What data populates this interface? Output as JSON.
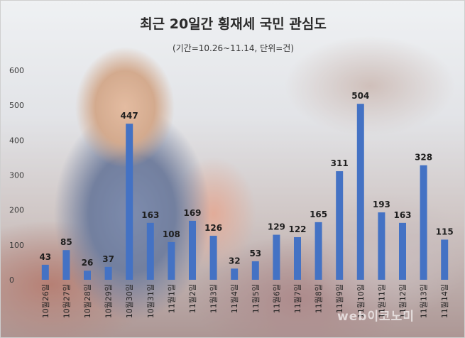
{
  "watermark": "web이코노미",
  "chart_data": {
    "type": "bar",
    "title": "최근 20일간 횡재세 국민 관심도",
    "subtitle": "(기간=10.26~11.14, 단위=건)",
    "categories": [
      "10월26일",
      "10월27일",
      "10월28일",
      "10월29일",
      "10월30일",
      "10월31일",
      "11월1일",
      "11월2일",
      "11월3일",
      "11월4일",
      "11월5일",
      "11월6일",
      "11월7일",
      "11월8일",
      "11월9일",
      "11월10일",
      "11월11일",
      "11월12일",
      "11월13일",
      "11월14일"
    ],
    "values": [
      43,
      85,
      26,
      37,
      447,
      163,
      108,
      169,
      126,
      32,
      53,
      129,
      122,
      165,
      311,
      504,
      193,
      163,
      328,
      115
    ],
    "yticks": [
      0,
      100,
      200,
      300,
      400,
      500,
      600
    ],
    "ylim": [
      0,
      600
    ],
    "bar_color": "#4472c4",
    "grid": false,
    "legend": "none"
  }
}
